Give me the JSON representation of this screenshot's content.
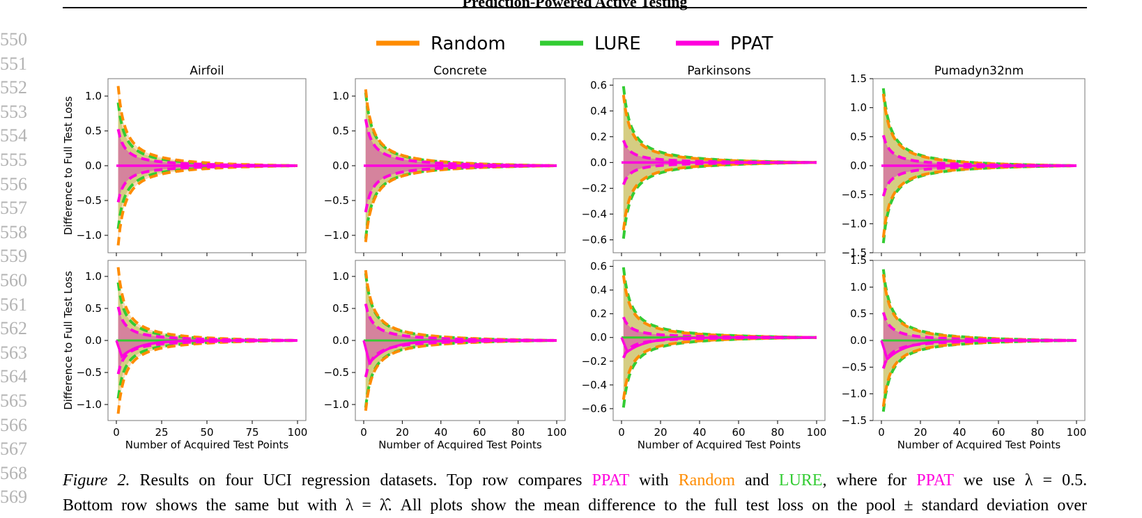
{
  "paper": {
    "header_title": "Prediction-Powered Active Testing",
    "line_numbers": [
      "550",
      "551",
      "552",
      "553",
      "554",
      "555",
      "556",
      "557",
      "558",
      "559",
      "560",
      "561",
      "562",
      "563",
      "564",
      "565",
      "566",
      "567",
      "568",
      "569"
    ]
  },
  "legend": [
    {
      "name": "Random",
      "color": "#ff8c00"
    },
    {
      "name": "LURE",
      "color": "#33cc33"
    },
    {
      "name": "PPAT",
      "color": "#ff00dd"
    }
  ],
  "chart_data": [
    {
      "type": "area",
      "row": "top",
      "title": "Airfoil",
      "ylabel": "Difference to Full Test Loss",
      "xlabel": "",
      "xlim": [
        0,
        100
      ],
      "ylim": [
        -1.25,
        1.25
      ],
      "yticks": [
        -1.0,
        -0.5,
        0.0,
        0.5,
        1.0
      ],
      "ytick_labels": [
        "−1.0",
        "−0.5",
        "0.0",
        "0.5",
        "1.0"
      ],
      "xticks": [
        0,
        25,
        50,
        75,
        100
      ],
      "xtick_labels": [],
      "bands": {
        "Random": 1.2,
        "LURE": 0.95,
        "PPAT": 0.55
      },
      "ppat_mean_dip": 0.0
    },
    {
      "type": "area",
      "row": "top",
      "title": "Concrete",
      "ylabel": "",
      "xlabel": "",
      "xlim": [
        0,
        100
      ],
      "ylim": [
        -1.25,
        1.25
      ],
      "yticks": [
        -1.0,
        -0.5,
        0.0,
        0.5,
        1.0
      ],
      "ytick_labels": [
        "−1.0",
        "−0.5",
        "0.0",
        "0.5",
        "1.0"
      ],
      "xticks": [
        0,
        20,
        40,
        60,
        80,
        100
      ],
      "xtick_labels": [],
      "bands": {
        "Random": 1.15,
        "LURE": 1.1,
        "PPAT": 0.7
      },
      "ppat_mean_dip": 0.0
    },
    {
      "type": "area",
      "row": "top",
      "title": "Parkinsons",
      "ylabel": "",
      "xlabel": "",
      "xlim": [
        0,
        100
      ],
      "ylim": [
        -0.7,
        0.65
      ],
      "yticks": [
        -0.6,
        -0.4,
        -0.2,
        0.0,
        0.2,
        0.4,
        0.6
      ],
      "ytick_labels": [
        "−0.6",
        "−0.4",
        "−0.2",
        "0.0",
        "0.2",
        "0.4",
        "0.6"
      ],
      "xticks": [
        0,
        20,
        40,
        60,
        80,
        100
      ],
      "xtick_labels": [],
      "bands": {
        "Random": 0.55,
        "LURE": 0.62,
        "PPAT": 0.18
      },
      "ppat_mean_dip": 0.0
    },
    {
      "type": "area",
      "row": "top",
      "title": "Pumadyn32nm",
      "ylabel": "",
      "xlabel": "",
      "xlim": [
        0,
        100
      ],
      "ylim": [
        -1.5,
        1.5
      ],
      "yticks": [
        -1.5,
        -1.0,
        -0.5,
        0.0,
        0.5,
        1.0,
        1.5
      ],
      "ytick_labels": [
        "−1.5",
        "−1.0",
        "−0.5",
        "0.0",
        "0.5",
        "1.0",
        "1.5"
      ],
      "xticks": [
        0,
        20,
        40,
        60,
        80,
        100
      ],
      "xtick_labels": [],
      "bands": {
        "Random": 1.3,
        "LURE": 1.4,
        "PPAT": 0.55
      },
      "ppat_mean_dip": 0.0
    },
    {
      "type": "area",
      "row": "bottom",
      "title": "",
      "ylabel": "Difference to Full Test Loss",
      "xlabel": "Number of Acquired Test Points",
      "xlim": [
        0,
        100
      ],
      "ylim": [
        -1.25,
        1.25
      ],
      "yticks": [
        -1.0,
        -0.5,
        0.0,
        0.5,
        1.0
      ],
      "ytick_labels": [
        "−1.0",
        "−0.5",
        "0.0",
        "0.5",
        "1.0"
      ],
      "xticks": [
        0,
        25,
        50,
        75,
        100
      ],
      "xtick_labels": [
        "0",
        "25",
        "50",
        "75",
        "100"
      ],
      "bands": {
        "Random": 1.2,
        "LURE": 0.95,
        "PPAT": 0.55
      },
      "ppat_mean_dip": -0.25
    },
    {
      "type": "area",
      "row": "bottom",
      "title": "",
      "ylabel": "",
      "xlabel": "Number of Acquired Test Points",
      "xlim": [
        0,
        100
      ],
      "ylim": [
        -1.25,
        1.25
      ],
      "yticks": [
        -1.0,
        -0.5,
        0.0,
        0.5,
        1.0
      ],
      "ytick_labels": [
        "−1.0",
        "−0.5",
        "0.0",
        "0.5",
        "1.0"
      ],
      "xticks": [
        0,
        20,
        40,
        60,
        80,
        100
      ],
      "xtick_labels": [
        "0",
        "20",
        "40",
        "60",
        "80",
        "100"
      ],
      "bands": {
        "Random": 1.15,
        "LURE": 1.1,
        "PPAT": 0.6
      },
      "ppat_mean_dip": -0.35
    },
    {
      "type": "area",
      "row": "bottom",
      "title": "",
      "ylabel": "",
      "xlabel": "Number of Acquired Test Points",
      "xlim": [
        0,
        100
      ],
      "ylim": [
        -0.7,
        0.65
      ],
      "yticks": [
        -0.6,
        -0.4,
        -0.2,
        0.0,
        0.2,
        0.4,
        0.6
      ],
      "ytick_labels": [
        "−0.6",
        "−0.4",
        "−0.2",
        "0.0",
        "0.2",
        "0.4",
        "0.6"
      ],
      "xticks": [
        0,
        20,
        40,
        60,
        80,
        100
      ],
      "xtick_labels": [
        "0",
        "20",
        "40",
        "60",
        "80",
        "100"
      ],
      "bands": {
        "Random": 0.55,
        "LURE": 0.62,
        "PPAT": 0.18
      },
      "ppat_mean_dip": -0.12
    },
    {
      "type": "area",
      "row": "bottom",
      "title": "",
      "ylabel": "",
      "xlabel": "Number of Acquired Test Points",
      "xlim": [
        0,
        100
      ],
      "ylim": [
        -1.5,
        1.5
      ],
      "yticks": [
        -1.5,
        -1.0,
        -0.5,
        0.0,
        0.5,
        1.0,
        1.5
      ],
      "ytick_labels": [
        "−1.5",
        "−1.0",
        "−0.5",
        "0.0",
        "0.5",
        "1.0",
        "1.5"
      ],
      "xticks": [
        0,
        20,
        40,
        60,
        80,
        100
      ],
      "xtick_labels": [
        "0",
        "20",
        "40",
        "60",
        "80",
        "100"
      ],
      "bands": {
        "Random": 1.3,
        "LURE": 1.4,
        "PPAT": 0.55
      },
      "ppat_mean_dip": -0.35
    }
  ],
  "caption": {
    "figure_label": "Figure 2.",
    "line1_a": "Results on four UCI regression datasets. Top row compares",
    "ppat": "PPAT",
    "line1_b": "with",
    "random": "Random",
    "line1_c": "and",
    "lure": "LURE",
    "line1_d": ", where for",
    "line1_e": "we use λ = 0.5.",
    "line2": "Bottom row shows the same but with λ = λ̂. All plots show the mean difference to the full test loss on the pool ± standard deviation over"
  }
}
